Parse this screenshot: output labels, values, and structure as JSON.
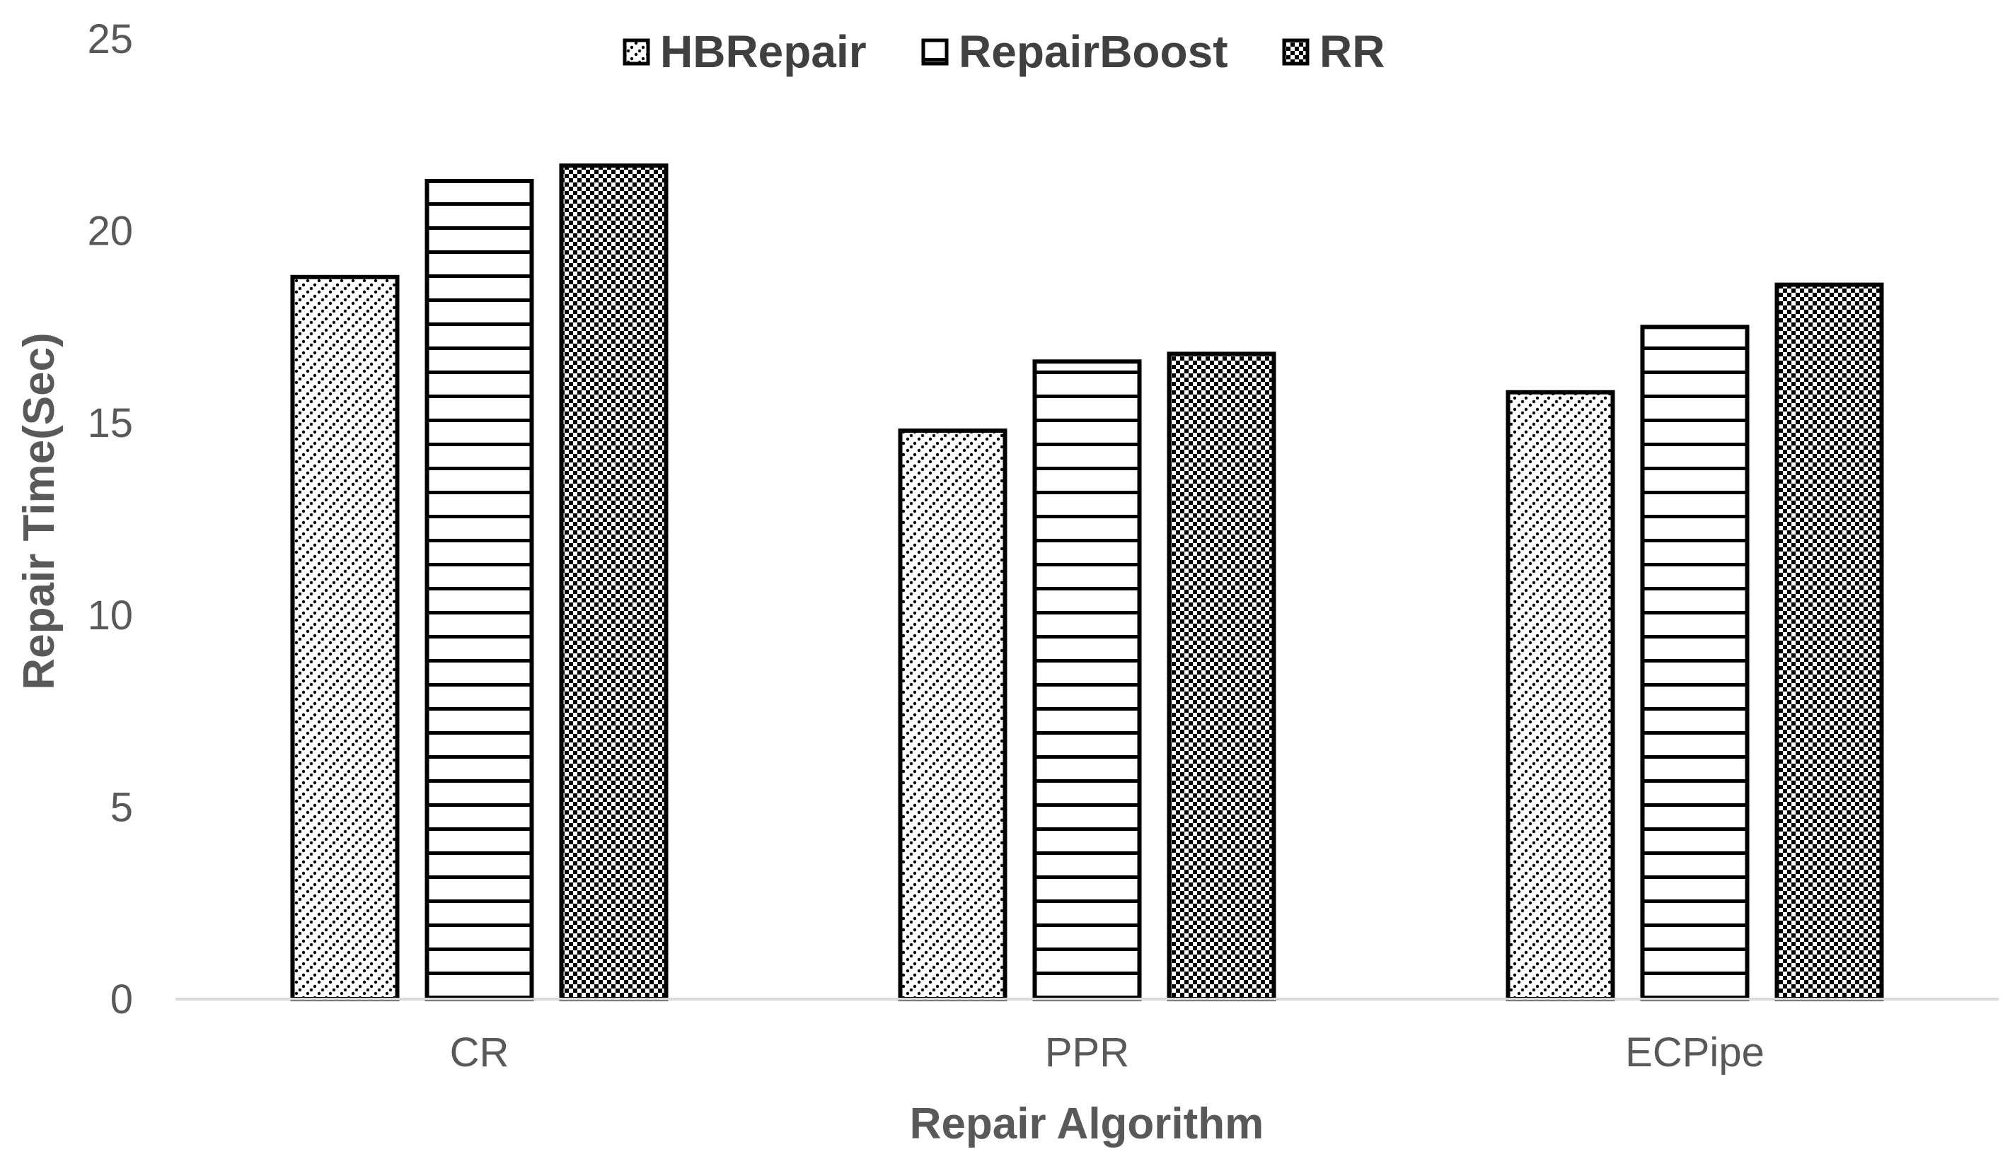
{
  "chart_data": {
    "type": "bar",
    "title": "",
    "xlabel": "Repair Algorithm",
    "ylabel": "Repair Time(Sec)",
    "categories": [
      "CR",
      "PPR",
      "ECPipe"
    ],
    "series": [
      {
        "name": "HBRepair",
        "values": [
          18.8,
          14.8,
          15.8
        ]
      },
      {
        "name": "RepairBoost",
        "values": [
          21.3,
          16.6,
          17.5
        ]
      },
      {
        "name": "RR",
        "values": [
          21.7,
          16.8,
          18.6
        ]
      }
    ],
    "ylim": [
      0,
      25
    ],
    "yticks": [
      "0",
      "5",
      "10",
      "15",
      "20",
      "25"
    ],
    "grid": false,
    "legend_position": "top"
  }
}
